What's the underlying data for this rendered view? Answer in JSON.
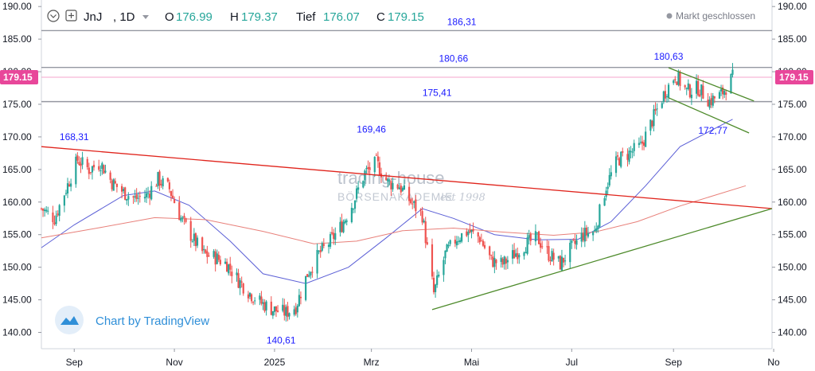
{
  "header": {
    "symbol": "JnJ",
    "interval": ", 1D",
    "open_label": "O",
    "open_value": "176.99",
    "high_label": "H",
    "high_value": "179.37",
    "low_label": "Tief",
    "low_value": "176.07",
    "close_label": "C",
    "close_value": "179.15",
    "market_status": "Markt geschlossen",
    "icons": [
      "chevron-circle-icon",
      "plus-square-icon",
      "dropdown-caret-icon",
      "status-dot-icon"
    ]
  },
  "watermark": {
    "line1": "trading-house",
    "line2": "BÖRSENAKADEMIE",
    "line3": "est 1998"
  },
  "credit": {
    "text": "Chart by TradingView",
    "icon": "tradingview-cloud-icon"
  },
  "colors": {
    "up": "#26a69a",
    "down": "#ef5350",
    "price_tag": "#e8479a",
    "sma_short": "#5b5fd6",
    "sma_long": "#e8807a",
    "red_trend": "#e0241c",
    "green_trend": "#4d8a2a",
    "hline": "#9598a1",
    "annotation": "#1a1aff"
  },
  "chart_data": {
    "type": "candlestick",
    "title": "",
    "xlabel": "",
    "ylabel": "",
    "ylim": [
      137.5,
      191.0
    ],
    "xlim": [
      "2024-08-12",
      "2025-10-31"
    ],
    "yticks": [
      "140.00",
      "145.00",
      "150.00",
      "155.00",
      "160.00",
      "165.00",
      "170.00",
      "175.00",
      "180.00",
      "185.00",
      "190.00"
    ],
    "xticks": [
      {
        "label": "Sep",
        "date": "2024-09-01"
      },
      {
        "label": "Nov",
        "date": "2024-11-01"
      },
      {
        "label": "2025",
        "date": "2025-01-01"
      },
      {
        "label": "Mrz",
        "date": "2025-03-01"
      },
      {
        "label": "Mai",
        "date": "2025-05-01"
      },
      {
        "label": "Jul",
        "date": "2025-07-01"
      },
      {
        "label": "Sep",
        "date": "2025-09-01"
      },
      {
        "label": "No",
        "date": "2025-11-01"
      }
    ],
    "last_price": 179.15,
    "last_price_label": "179.15",
    "price_path": [
      [
        "2024-08-12",
        159.0
      ],
      [
        "2024-08-20",
        157.5
      ],
      [
        "2024-08-27",
        162.0
      ],
      [
        "2024-09-03",
        166.5
      ],
      [
        "2024-09-10",
        165.0
      ],
      [
        "2024-09-17",
        166.0
      ],
      [
        "2024-09-24",
        163.0
      ],
      [
        "2024-10-01",
        161.5
      ],
      [
        "2024-10-08",
        160.5
      ],
      [
        "2024-10-15",
        161.0
      ],
      [
        "2024-10-22",
        163.5
      ],
      [
        "2024-10-29",
        162.0
      ],
      [
        "2024-11-05",
        157.5
      ],
      [
        "2024-11-12",
        154.5
      ],
      [
        "2024-11-19",
        152.0
      ],
      [
        "2024-11-26",
        151.5
      ],
      [
        "2024-12-03",
        150.5
      ],
      [
        "2024-12-10",
        148.0
      ],
      [
        "2024-12-17",
        146.0
      ],
      [
        "2024-12-24",
        144.5
      ],
      [
        "2024-12-31",
        143.5
      ],
      [
        "2025-01-08",
        143.0
      ],
      [
        "2025-01-14",
        144.0
      ],
      [
        "2025-01-21",
        149.0
      ],
      [
        "2025-01-28",
        152.0
      ],
      [
        "2025-02-04",
        154.0
      ],
      [
        "2025-02-11",
        156.5
      ],
      [
        "2025-02-18",
        160.0
      ],
      [
        "2025-02-25",
        164.5
      ],
      [
        "2025-03-04",
        166.0
      ],
      [
        "2025-03-11",
        163.0
      ],
      [
        "2025-03-18",
        162.5
      ],
      [
        "2025-03-25",
        160.0
      ],
      [
        "2025-04-01",
        158.0
      ],
      [
        "2025-04-08",
        146.0
      ],
      [
        "2025-04-15",
        152.0
      ],
      [
        "2025-04-22",
        154.5
      ],
      [
        "2025-04-29",
        155.5
      ],
      [
        "2025-05-06",
        154.5
      ],
      [
        "2025-05-13",
        151.0
      ],
      [
        "2025-05-20",
        150.5
      ],
      [
        "2025-05-27",
        152.0
      ],
      [
        "2025-06-03",
        153.5
      ],
      [
        "2025-06-10",
        154.5
      ],
      [
        "2025-06-17",
        152.0
      ],
      [
        "2025-06-24",
        150.5
      ],
      [
        "2025-07-01",
        153.0
      ],
      [
        "2025-07-08",
        155.0
      ],
      [
        "2025-07-15",
        155.5
      ],
      [
        "2025-07-22",
        162.5
      ],
      [
        "2025-07-29",
        166.5
      ],
      [
        "2025-08-05",
        167.5
      ],
      [
        "2025-08-12",
        168.5
      ],
      [
        "2025-08-19",
        172.5
      ],
      [
        "2025-08-26",
        176.5
      ],
      [
        "2025-09-02",
        179.5
      ],
      [
        "2025-09-09",
        177.0
      ],
      [
        "2025-09-16",
        177.5
      ],
      [
        "2025-09-23",
        175.5
      ],
      [
        "2025-09-30",
        176.5
      ],
      [
        "2025-10-07",
        179.15
      ]
    ],
    "sma_short": {
      "color": "#5b5fd6",
      "points": [
        [
          "2024-08-12",
          153.0
        ],
        [
          "2024-09-01",
          156.5
        ],
        [
          "2024-10-01",
          161.0
        ],
        [
          "2024-10-20",
          161.7
        ],
        [
          "2024-11-10",
          159.5
        ],
        [
          "2024-12-05",
          154.0
        ],
        [
          "2024-12-25",
          149.0
        ],
        [
          "2025-01-20",
          147.5
        ],
        [
          "2025-02-15",
          150.0
        ],
        [
          "2025-03-10",
          154.5
        ],
        [
          "2025-04-01",
          159.0
        ],
        [
          "2025-04-20",
          157.5
        ],
        [
          "2025-05-15",
          155.0
        ],
        [
          "2025-06-10",
          154.2
        ],
        [
          "2025-07-05",
          154.3
        ],
        [
          "2025-07-25",
          157.0
        ],
        [
          "2025-08-15",
          162.5
        ],
        [
          "2025-09-05",
          168.5
        ],
        [
          "2025-10-07",
          172.7
        ]
      ]
    },
    "sma_long": {
      "color": "#e8807a",
      "points": [
        [
          "2024-08-12",
          154.5
        ],
        [
          "2024-09-15",
          156.0
        ],
        [
          "2024-10-20",
          157.6
        ],
        [
          "2024-11-20",
          157.3
        ],
        [
          "2024-12-25",
          155.5
        ],
        [
          "2025-01-25",
          153.6
        ],
        [
          "2025-02-20",
          154.0
        ],
        [
          "2025-03-20",
          155.6
        ],
        [
          "2025-04-20",
          156.0
        ],
        [
          "2025-05-20",
          155.4
        ],
        [
          "2025-06-20",
          154.9
        ],
        [
          "2025-07-15",
          155.4
        ],
        [
          "2025-08-10",
          157.0
        ],
        [
          "2025-09-05",
          159.4
        ],
        [
          "2025-10-15",
          162.5
        ]
      ]
    },
    "horizontal_lines": [
      {
        "value": 186.31,
        "label": "186,31",
        "label_date": "2025-04-25"
      },
      {
        "value": 180.66,
        "label": "180,66",
        "label_date": "2025-04-20"
      },
      {
        "value": 175.41,
        "label": "175,41",
        "label_date": "2025-04-10"
      }
    ],
    "trendlines": [
      {
        "name": "red_resistance",
        "color": "#e0241c",
        "from": [
          "2024-08-12",
          168.5
        ],
        "to": [
          "2025-10-31",
          159.0
        ]
      },
      {
        "name": "green_support",
        "color": "#4d8a2a",
        "from": [
          "2025-04-07",
          143.5
        ],
        "to": [
          "2025-10-31",
          159.0
        ]
      },
      {
        "name": "channel_upper",
        "color": "#4d8a2a",
        "from": [
          "2025-08-29",
          180.6
        ],
        "to": [
          "2025-10-20",
          175.5
        ]
      },
      {
        "name": "channel_lower",
        "color": "#4d8a2a",
        "from": [
          "2025-08-29",
          176.0
        ],
        "to": [
          "2025-10-17",
          170.6
        ]
      }
    ],
    "annotations": [
      {
        "text": "168,31",
        "date": "2024-09-01",
        "value": 168.31,
        "position": "above"
      },
      {
        "text": "140,61",
        "date": "2025-01-05",
        "value": 140.61,
        "position": "below"
      },
      {
        "text": "169,46",
        "date": "2025-03-01",
        "value": 169.46,
        "position": "above"
      },
      {
        "text": "180,63",
        "date": "2025-08-29",
        "value": 180.63,
        "position": "above"
      },
      {
        "text": "172,77",
        "date": "2025-09-25",
        "value": 172.77,
        "position": "below"
      }
    ],
    "grid": false,
    "legend": "none"
  }
}
